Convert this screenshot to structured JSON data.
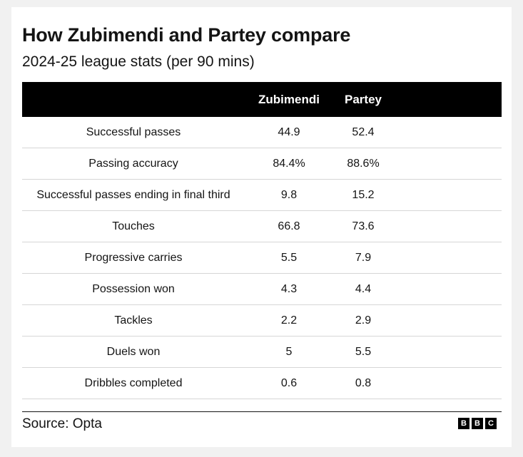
{
  "title": "How Zubimendi and Partey compare",
  "subtitle": "2024-25 league stats (per 90 mins)",
  "table": {
    "headers": [
      "",
      "Zubimendi",
      "Partey"
    ],
    "rows": [
      {
        "metric": "Successful passes",
        "zubimendi": "44.9",
        "partey": "52.4"
      },
      {
        "metric": "Passing accuracy",
        "zubimendi": "84.4%",
        "partey": "88.6%"
      },
      {
        "metric": "Successful passes ending in final third",
        "zubimendi": "9.8",
        "partey": "15.2"
      },
      {
        "metric": "Touches",
        "zubimendi": "66.8",
        "partey": "73.6"
      },
      {
        "metric": "Progressive carries",
        "zubimendi": "5.5",
        "partey": "7.9"
      },
      {
        "metric": "Possession won",
        "zubimendi": "4.3",
        "partey": "4.4"
      },
      {
        "metric": "Tackles",
        "zubimendi": "2.2",
        "partey": "2.9"
      },
      {
        "metric": "Duels won",
        "zubimendi": "5",
        "partey": "5.5"
      },
      {
        "metric": "Dribbles completed",
        "zubimendi": "0.6",
        "partey": "0.8"
      }
    ]
  },
  "footer": {
    "source": "Source: Opta",
    "logo_letters": [
      "B",
      "B",
      "C"
    ]
  },
  "colors": {
    "header_bg": "#000000",
    "header_text": "#ffffff",
    "row_divider": "#d6d6d6",
    "page_bg": "#f1f1f1",
    "card_bg": "#ffffff"
  }
}
